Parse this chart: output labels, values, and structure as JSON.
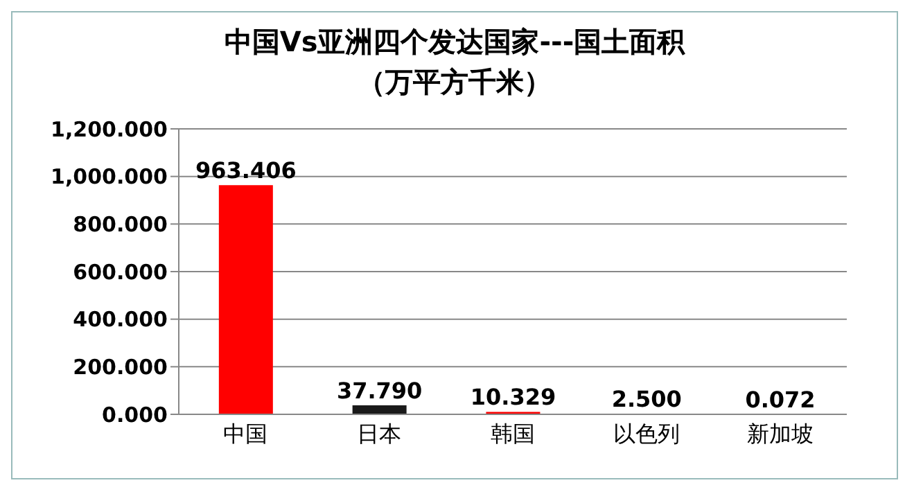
{
  "chart_data": {
    "type": "bar",
    "title": "中国Vs亚洲四个发达国家---国土面积",
    "subtitle": "（万平方千米）",
    "categories": [
      "中国",
      "日本",
      "韩国",
      "以色列",
      "新加坡"
    ],
    "values": [
      963.406,
      37.79,
      10.329,
      2.5,
      0.072
    ],
    "value_labels": [
      "963.406",
      "37.790",
      "10.329",
      "2.500",
      "0.072"
    ],
    "colors": [
      "#ff0000",
      "#1a1a1a",
      "#ff0000",
      "#ff0000",
      "#ff0000"
    ],
    "ylim": [
      0,
      1200
    ],
    "yticks": [
      {
        "value": 0,
        "label": "0.000"
      },
      {
        "value": 200,
        "label": "200.000"
      },
      {
        "value": 400,
        "label": "400.000"
      },
      {
        "value": 600,
        "label": "600.000"
      },
      {
        "value": 800,
        "label": "800.000"
      },
      {
        "value": 1000,
        "label": "1,000.000"
      },
      {
        "value": 1200,
        "label": "1,200.000"
      }
    ],
    "grid": "y",
    "legend": false
  }
}
